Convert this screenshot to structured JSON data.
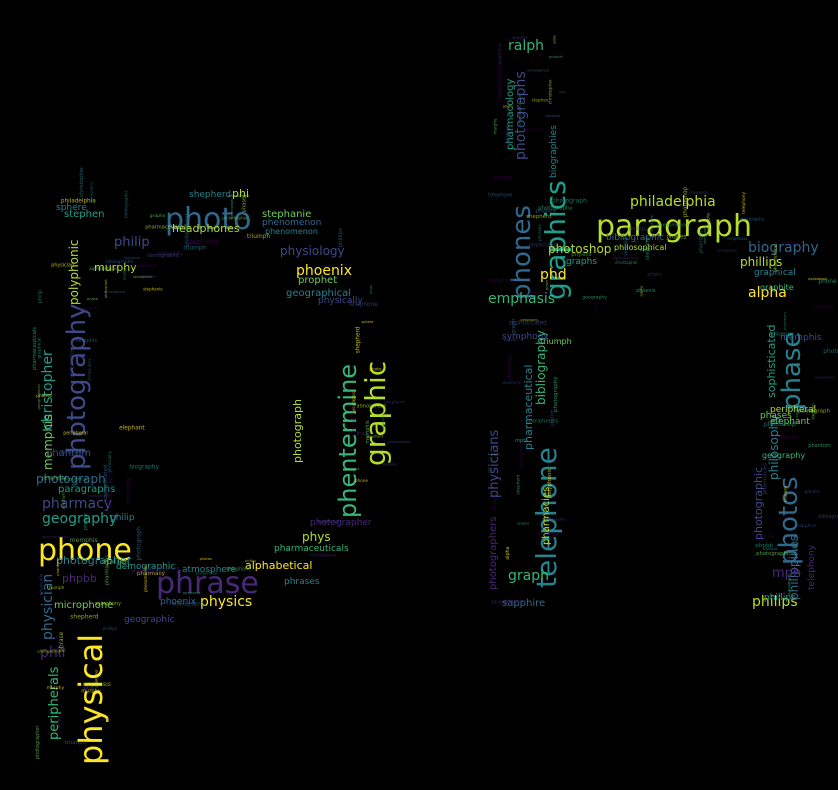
{
  "cloud": {
    "background": "#000000",
    "palette": [
      "#fde725",
      "#b5de2b",
      "#6ece58",
      "#35b779",
      "#1f9e89",
      "#26828e",
      "#31688e",
      "#3e4989",
      "#482878",
      "#440154"
    ],
    "words": [
      {
        "text": "phone",
        "color": "#fde725"
      },
      {
        "text": "phrase",
        "color": "#482878"
      },
      {
        "text": "photo",
        "color": "#31688e"
      },
      {
        "text": "paragraph",
        "color": "#b5de2b"
      },
      {
        "text": "physical",
        "color": "#fde725"
      },
      {
        "text": "photography",
        "color": "#3e4989"
      },
      {
        "text": "phentermine",
        "color": "#35b779"
      },
      {
        "text": "graphic",
        "color": "#b5de2b"
      },
      {
        "text": "telephone",
        "color": "#26828e"
      },
      {
        "text": "phones",
        "color": "#31688e"
      },
      {
        "text": "graphics",
        "color": "#1f9e89"
      },
      {
        "text": "photos",
        "color": "#31688e"
      },
      {
        "text": "phase",
        "color": "#26828e"
      },
      {
        "text": "philadelphia",
        "color": "#b5de2b"
      },
      {
        "text": "biography",
        "color": "#31688e"
      },
      {
        "text": "phillips",
        "color": "#b5de2b"
      },
      {
        "text": "alpha",
        "color": "#fde725"
      },
      {
        "text": "emphasis",
        "color": "#35b779"
      },
      {
        "text": "photoshop",
        "color": "#b5de2b"
      },
      {
        "text": "phd",
        "color": "#fde725"
      },
      {
        "text": "graph",
        "color": "#35b779"
      },
      {
        "text": "philips",
        "color": "#b5de2b"
      },
      {
        "text": "physics",
        "color": "#fde725"
      },
      {
        "text": "phoenix",
        "color": "#fde725"
      },
      {
        "text": "geography",
        "color": "#1f9e89"
      },
      {
        "text": "pharmacy",
        "color": "#3e4989"
      },
      {
        "text": "photographer",
        "color": "#26828e"
      },
      {
        "text": "christopher",
        "color": "#1f9e89"
      },
      {
        "text": "polyphonic",
        "color": "#b5de2b"
      },
      {
        "text": "memphis",
        "color": "#6ece58"
      },
      {
        "text": "photograph",
        "color": "#31688e"
      },
      {
        "text": "paragraphs",
        "color": "#1f9e89"
      },
      {
        "text": "phil",
        "color": "#482878"
      },
      {
        "text": "peripherals",
        "color": "#35b779"
      },
      {
        "text": "physician",
        "color": "#31688e"
      },
      {
        "text": "philip",
        "color": "#3e4989"
      },
      {
        "text": "murphy",
        "color": "#b5de2b"
      },
      {
        "text": "headphones",
        "color": "#b5de2b"
      },
      {
        "text": "stephen",
        "color": "#1f9e89"
      },
      {
        "text": "stephanie",
        "color": "#6ece58"
      },
      {
        "text": "shepherd",
        "color": "#26828e"
      },
      {
        "text": "phi",
        "color": "#b5de2b"
      },
      {
        "text": "physiology",
        "color": "#3e4989"
      },
      {
        "text": "phrases",
        "color": "#26828e"
      },
      {
        "text": "alphabetical",
        "color": "#fde725"
      },
      {
        "text": "pharmaceuticals",
        "color": "#35b779"
      },
      {
        "text": "phys",
        "color": "#b5de2b"
      },
      {
        "text": "microphone",
        "color": "#6ece58"
      },
      {
        "text": "atmosphere",
        "color": "#26828e"
      },
      {
        "text": "ralph",
        "color": "#35b779"
      },
      {
        "text": "photographs",
        "color": "#3e4989"
      },
      {
        "text": "pharmacology",
        "color": "#1f9e89"
      },
      {
        "text": "bibliography",
        "color": "#35b779"
      },
      {
        "text": "pharmacies",
        "color": "#b5de2b"
      },
      {
        "text": "sapphire",
        "color": "#31688e"
      },
      {
        "text": "philosophy",
        "color": "#26828e"
      },
      {
        "text": "sophisticated",
        "color": "#1f9e89"
      },
      {
        "text": "philippines",
        "color": "#31688e"
      },
      {
        "text": "mph",
        "color": "#482878"
      },
      {
        "text": "photographic",
        "color": "#3e4989"
      },
      {
        "text": "elephant",
        "color": "#6ece58"
      },
      {
        "text": "peripheral",
        "color": "#b5de2b"
      },
      {
        "text": "physicians",
        "color": "#3e4989"
      },
      {
        "text": "pharmaceutical",
        "color": "#26828e"
      },
      {
        "text": "photographers",
        "color": "#482878"
      },
      {
        "text": "graphs",
        "color": "#1f9e89"
      },
      {
        "text": "graphical",
        "color": "#26828e"
      },
      {
        "text": "demographic",
        "color": "#1f9e89"
      },
      {
        "text": "geographic",
        "color": "#3e4989"
      },
      {
        "text": "geographical",
        "color": "#26828e"
      },
      {
        "text": "phases",
        "color": "#6ece58"
      },
      {
        "text": "phantom",
        "color": "#3e4989"
      },
      {
        "text": "phpbb",
        "color": "#482878"
      },
      {
        "text": "sphere",
        "color": "#26828e"
      },
      {
        "text": "phenomenon",
        "color": "#31688e"
      },
      {
        "text": "prophet",
        "color": "#6ece58"
      },
      {
        "text": "telephony",
        "color": "#482878"
      },
      {
        "text": "triumph",
        "color": "#6ece58"
      },
      {
        "text": "symphony",
        "color": "#3e4989"
      },
      {
        "text": "phenomenon",
        "color": "#26828e"
      },
      {
        "text": "bibliographic",
        "color": "#31688e"
      },
      {
        "text": "graphite",
        "color": "#35b779"
      },
      {
        "text": "biographies",
        "color": "#26828e"
      },
      {
        "text": "philosophical",
        "color": "#b5de2b"
      },
      {
        "text": "geography",
        "color": "#35b779"
      },
      {
        "text": "physically",
        "color": "#3e4989"
      },
      {
        "text": "phoenix",
        "color": "#31688e"
      },
      {
        "text": "photographer",
        "color": "#482878"
      },
      {
        "text": "phillips",
        "color": "#1f9e89"
      },
      {
        "text": "photograph",
        "color": "#b5de2b"
      },
      {
        "text": "memphis",
        "color": "#3e4989"
      },
      {
        "text": "philip",
        "color": "#26828e"
      }
    ]
  }
}
